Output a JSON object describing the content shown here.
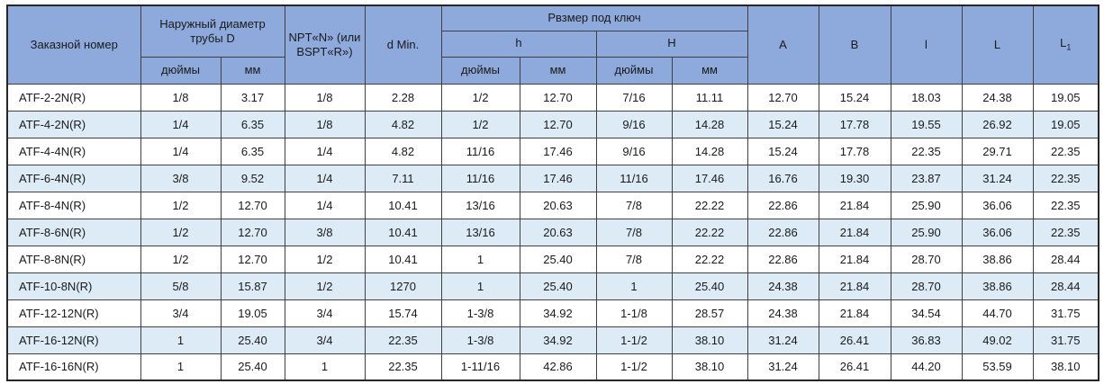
{
  "table": {
    "header": {
      "order_number": "Заказной номер",
      "outer_diameter": "Наружный диаметр трубы D",
      "npt": "NPT«N» (или BSPT«R»)",
      "d_min": "d Min.",
      "wrench_size": "Рвзмер под ключ",
      "h_lower": "h",
      "h_upper": "H",
      "inches_1": "дюймы",
      "mm_1": "мм",
      "inches_2": "дюймы",
      "mm_2": "мм",
      "inches_3": "дюймы",
      "mm_3": "мм",
      "col_a": "A",
      "col_b": "B",
      "col_l_small": "l",
      "col_l_big": "L",
      "col_l1_base": "L",
      "col_l1_sub": "1"
    },
    "rows": [
      [
        "ATF-2-2N(R)",
        "1/8",
        "3.17",
        "1/8",
        "2.28",
        "1/2",
        "12.70",
        "7/16",
        "11.11",
        "12.70",
        "15.24",
        "18.03",
        "24.38",
        "19.05"
      ],
      [
        "ATF-4-2N(R)",
        "1/4",
        "6.35",
        "1/8",
        "4.82",
        "1/2",
        "12.70",
        "9/16",
        "14.28",
        "15.24",
        "17.78",
        "19.55",
        "26.92",
        "19.05"
      ],
      [
        "ATF-4-4N(R)",
        "1/4",
        "6.35",
        "1/4",
        "4.82",
        "11/16",
        "17.46",
        "9/16",
        "14.28",
        "15.24",
        "17.78",
        "22.35",
        "29.71",
        "22.35"
      ],
      [
        "ATF-6-4N(R)",
        "3/8",
        "9.52",
        "1/4",
        "7.11",
        "11/16",
        "17.46",
        "11/16",
        "17.46",
        "16.76",
        "19.30",
        "23.87",
        "31.24",
        "22.35"
      ],
      [
        "ATF-8-4N(R)",
        "1/2",
        "12.70",
        "1/4",
        "10.41",
        "13/16",
        "20.63",
        "7/8",
        "22.22",
        "22.86",
        "21.84",
        "25.90",
        "36.06",
        "22.35"
      ],
      [
        "ATF-8-6N(R)",
        "1/2",
        "12.70",
        "3/8",
        "10.41",
        "13/16",
        "20.63",
        "7/8",
        "22.22",
        "22.86",
        "21.84",
        "25.90",
        "36.06",
        "22.35"
      ],
      [
        "ATF-8-8N(R)",
        "1/2",
        "12.70",
        "1/2",
        "10.41",
        "1",
        "25.40",
        "7/8",
        "22.22",
        "22.86",
        "21.84",
        "28.70",
        "38.86",
        "28.44"
      ],
      [
        "ATF-10-8N(R)",
        "5/8",
        "15.87",
        "1/2",
        "1270",
        "1",
        "25.40",
        "1",
        "25.40",
        "24.38",
        "21.84",
        "28.70",
        "38.86",
        "28.44"
      ],
      [
        "ATF-12-12N(R)",
        "3/4",
        "19.05",
        "3/4",
        "15.74",
        "1-3/8",
        "34.92",
        "1-1/8",
        "28.57",
        "24.38",
        "21.84",
        "34.54",
        "44.70",
        "31.75"
      ],
      [
        "ATF-16-12N(R)",
        "1",
        "25.40",
        "3/4",
        "22.35",
        "1-3/8",
        "34.92",
        "1-1/2",
        "38.10",
        "31.24",
        "26.41",
        "36.83",
        "49.02",
        "31.75"
      ],
      [
        "ATF-16-16N(R)",
        "1",
        "25.40",
        "1",
        "22.35",
        "1-11/16",
        "42.86",
        "1-1/2",
        "38.10",
        "31.24",
        "26.41",
        "44.20",
        "53.59",
        "38.10"
      ]
    ]
  },
  "colors": {
    "header_bg": "#8EA9DB",
    "row_bg": "#FFFFFF",
    "row_alt_bg": "#DDEBF7",
    "border": "#404040",
    "text": "#1A1A1A"
  }
}
